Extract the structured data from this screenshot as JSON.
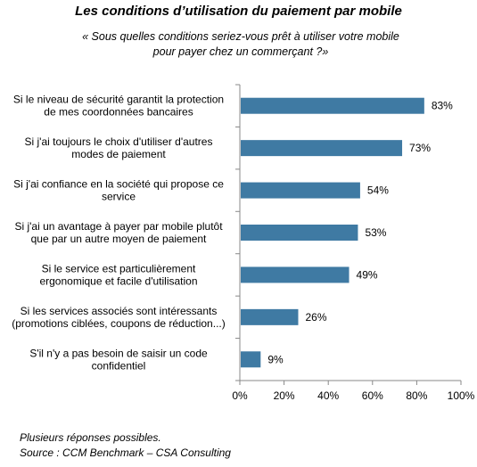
{
  "title": "Les conditions d’utilisation du paiement par mobile",
  "subtitle": "« Sous quelles conditions seriez-vous prêt à utiliser votre mobile\npour payer chez un commerçant ?»",
  "chart_data": {
    "type": "bar",
    "orientation": "horizontal",
    "categories": [
      "Si le niveau de sécurité garantit la protection\nde mes coordonnées bancaires",
      "Si j'ai toujours le choix d'utiliser d'autres\nmodes de paiement",
      "Si j'ai confiance en la société qui propose ce\nservice",
      "Si j'ai un avantage à payer par mobile plutôt\nque par un autre moyen de paiement",
      "Si le service est particulièrement\nergonomique et facile d'utilisation",
      "Si les services associés sont intéressants\n(promotions ciblées, coupons de réduction...)",
      "S'il n'y a pas besoin de saisir un code\nconfidentiel"
    ],
    "values": [
      83,
      73,
      54,
      53,
      49,
      26,
      9
    ],
    "data_labels": [
      "83%",
      "73%",
      "54%",
      "53%",
      "49%",
      "26%",
      "9%"
    ],
    "xlim": [
      0,
      100
    ],
    "xticks": [
      "0%",
      "20%",
      "40%",
      "60%",
      "80%",
      "100%"
    ],
    "bar_color": "#3f7aa3",
    "grid": false
  },
  "footnotes": {
    "line1": "Plusieurs réponses possibles.",
    "line2": "Source : CCM Benchmark – CSA Consulting"
  }
}
